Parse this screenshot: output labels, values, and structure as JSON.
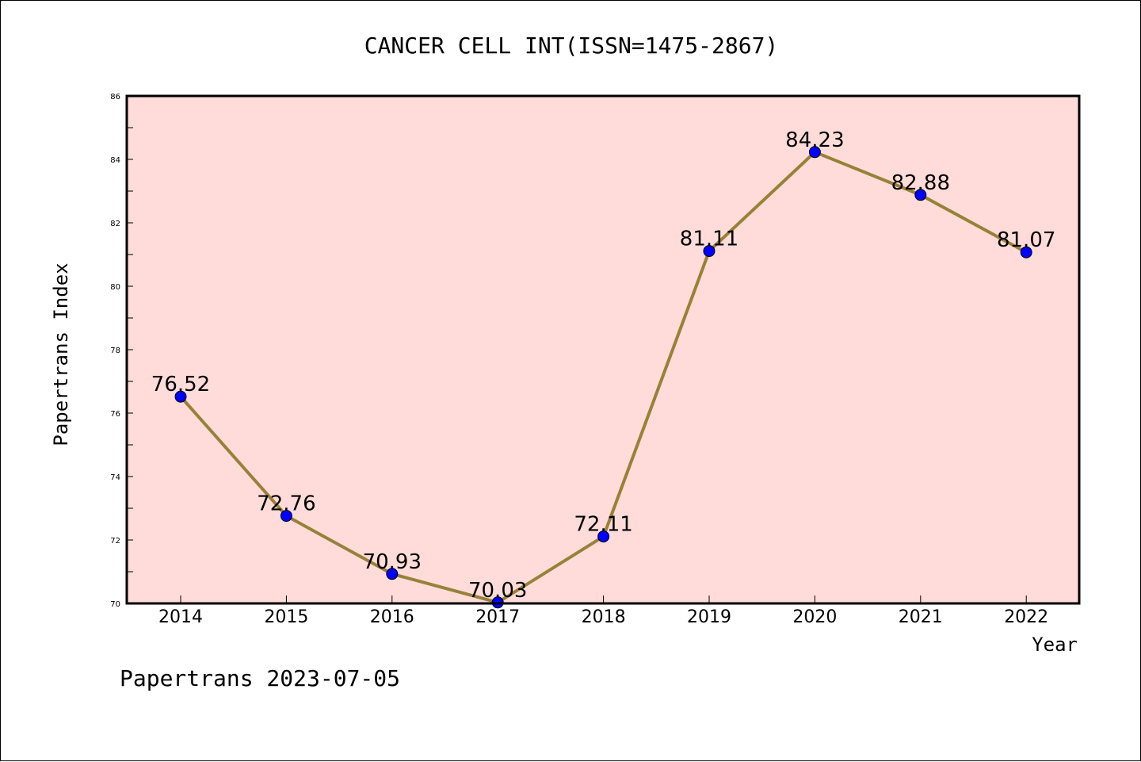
{
  "chart_data": {
    "type": "line",
    "title": "CANCER CELL INT(ISSN=1475-2867)",
    "xlabel": "Year",
    "ylabel": "Papertrans Index",
    "categories": [
      "2014",
      "2015",
      "2016",
      "2017",
      "2018",
      "2019",
      "2020",
      "2021",
      "2022"
    ],
    "values": [
      76.52,
      72.76,
      70.93,
      70.03,
      72.11,
      81.11,
      84.23,
      82.88,
      81.07
    ],
    "data_labels": [
      "76.52",
      "72.76",
      "70.93",
      "70.03",
      "72.11",
      "81.11",
      "84.23",
      "82.88",
      "81.07"
    ],
    "ylim": [
      70,
      86
    ],
    "yticks": [
      "70",
      "72",
      "74",
      "76",
      "78",
      "80",
      "82",
      "84",
      "86"
    ],
    "grid": false,
    "legend": "none",
    "colors": {
      "plot_background": "#ffdcd9",
      "line": "#9a8038",
      "marker": "#0000ff",
      "marker_edge": "#000000"
    }
  },
  "footer": "Papertrans 2023-07-05"
}
